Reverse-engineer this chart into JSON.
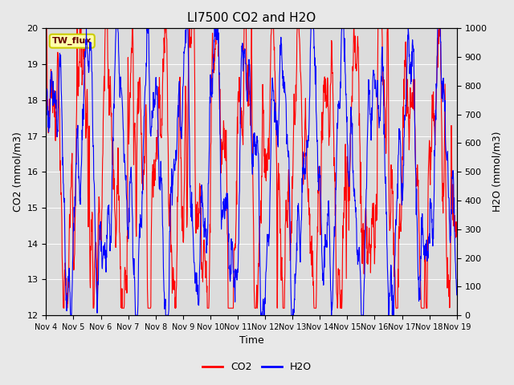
{
  "title": "LI7500 CO2 and H2O",
  "xlabel": "Time",
  "ylabel_left": "CO2 (mmol/m3)",
  "ylabel_right": "H2O (mmol/m3)",
  "annotation": "TW_flux",
  "ylim_left": [
    12.0,
    20.0
  ],
  "ylim_right": [
    0,
    1000
  ],
  "yticks_left": [
    12.0,
    13.0,
    14.0,
    15.0,
    16.0,
    17.0,
    18.0,
    19.0,
    20.0
  ],
  "yticks_right": [
    0,
    100,
    200,
    300,
    400,
    500,
    600,
    700,
    800,
    900,
    1000
  ],
  "xtick_labels": [
    "Nov 4",
    "Nov 5",
    "Nov 6",
    "Nov 7",
    "Nov 8",
    "Nov 9",
    "Nov 10",
    "Nov 11",
    "Nov 12",
    "Nov 13",
    "Nov 14",
    "Nov 15",
    "Nov 16",
    "Nov 17",
    "Nov 18",
    "Nov 19"
  ],
  "co2_color": "#FF0000",
  "h2o_color": "#0000FF",
  "line_width": 0.8,
  "bg_color": "#E8E8E8",
  "plot_bg_color": "#DCDCDC",
  "legend_co2": "CO2",
  "legend_h2o": "H2O",
  "annotation_bg": "#FFFFAA",
  "annotation_border": "#CCCC00",
  "title_fontsize": 11,
  "label_fontsize": 9,
  "tick_fontsize": 8,
  "legend_fontsize": 9
}
